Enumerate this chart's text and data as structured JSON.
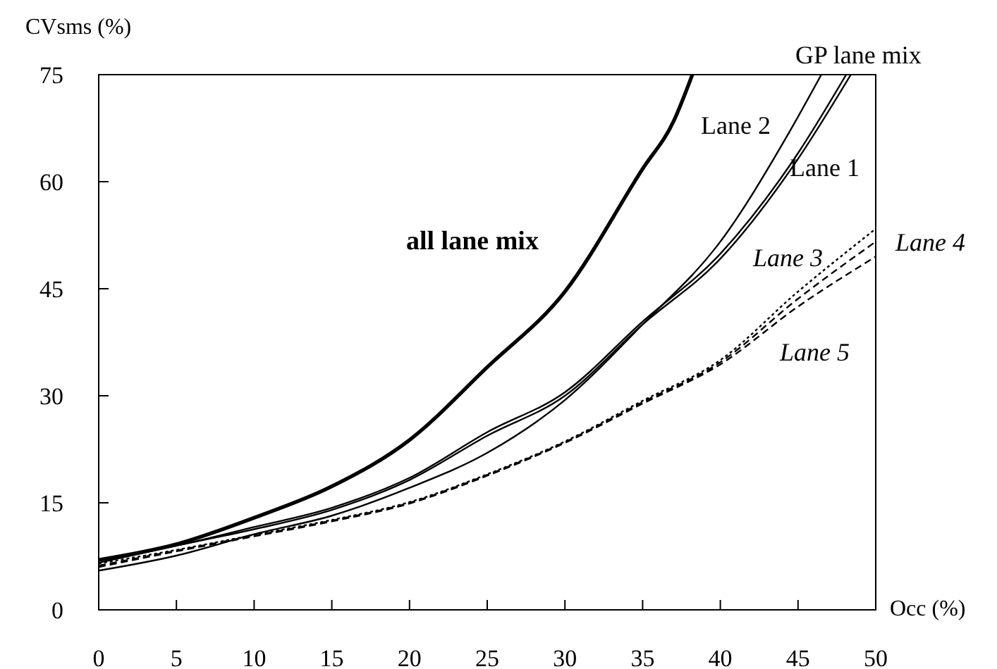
{
  "chart_data": {
    "type": "line",
    "xlabel": "Occ (%)",
    "ylabel": "CVsms (%)",
    "xlim": [
      0,
      50
    ],
    "ylim": [
      0,
      75
    ],
    "xticks": [
      0,
      5,
      10,
      15,
      20,
      25,
      30,
      35,
      40,
      45,
      50
    ],
    "yticks": [
      0,
      15,
      30,
      45,
      60,
      75
    ],
    "grid": false,
    "marker": "none",
    "series": [
      {
        "name": "all lane mix",
        "color": "#000000",
        "line_style": "solid",
        "x": [
          0,
          5,
          10,
          15,
          20,
          25,
          30,
          35,
          37,
          38.2
        ],
        "values": [
          7.0,
          9.2,
          12.9,
          17.3,
          23.8,
          34,
          44.6,
          61.8,
          68.5,
          75
        ]
      },
      {
        "name": "GP lane mix",
        "color": "#000000",
        "line_style": "solid",
        "x": [
          0,
          5,
          10,
          15,
          20,
          25,
          30,
          35,
          40,
          45,
          48.1
        ],
        "values": [
          7.0,
          9.0,
          11.6,
          14.3,
          18.5,
          24.9,
          30.5,
          40.4,
          49.9,
          64,
          75
        ]
      },
      {
        "name": "Lane 1",
        "color": "#000000",
        "line_style": "solid",
        "x": [
          0,
          5,
          10,
          15,
          20,
          25,
          30,
          35,
          40,
          45,
          48.4
        ],
        "values": [
          6.6,
          9.0,
          11.3,
          14.0,
          18.2,
          24.4,
          30,
          40,
          49.2,
          63.2,
          75
        ]
      },
      {
        "name": "Lane 2",
        "color": "#000000",
        "line_style": "solid",
        "x": [
          0,
          5,
          10,
          15,
          20,
          25,
          30,
          35,
          40,
          44.4,
          46.5
        ],
        "values": [
          5.5,
          7.6,
          10.6,
          13.2,
          17.1,
          22,
          29.4,
          40,
          51.6,
          66.8,
          75
        ]
      },
      {
        "name": "Lane 3",
        "color": "#000000",
        "line_style": "dashed",
        "x": [
          0,
          5,
          10,
          15,
          20,
          25,
          30,
          35,
          40,
          45,
          50
        ],
        "values": [
          6.2,
          8.3,
          10.4,
          12.5,
          15,
          18.9,
          23.5,
          29.1,
          34.7,
          43.6,
          51.6
        ]
      },
      {
        "name": "Lane 4",
        "color": "#000000",
        "line_style": "dotted",
        "x": [
          0,
          5,
          10,
          15,
          20,
          25,
          30,
          35,
          40,
          45,
          50
        ],
        "values": [
          6.5,
          8.4,
          10.5,
          12.6,
          15.1,
          19,
          23.6,
          29.3,
          35.0,
          44.6,
          53.4
        ]
      },
      {
        "name": "Lane 5",
        "color": "#000000",
        "line_style": "dashed",
        "x": [
          0,
          5,
          10,
          15,
          20,
          25,
          30,
          35,
          40,
          45,
          50
        ],
        "values": [
          6.0,
          8.2,
          10.3,
          12.4,
          14.9,
          18.8,
          23.4,
          28.9,
          34.4,
          42.5,
          49.5
        ]
      }
    ]
  }
}
